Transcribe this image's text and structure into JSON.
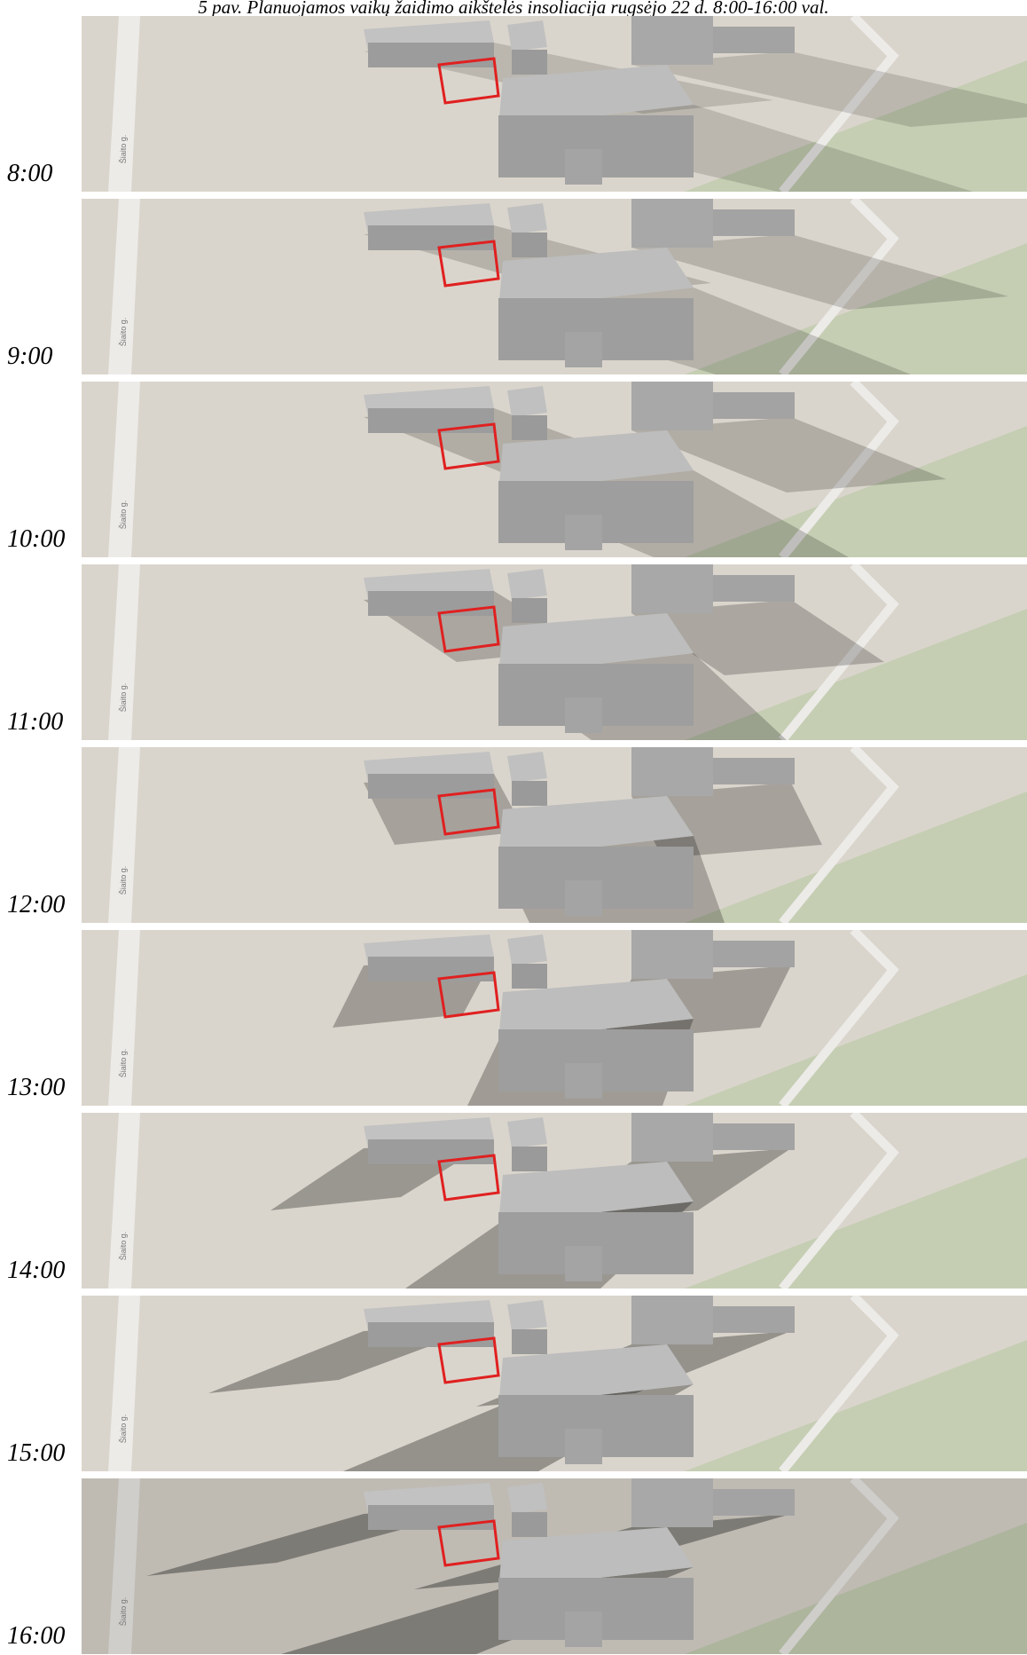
{
  "caption": "5 pav. Planuojamos vaikų žaidimo aikštelės insoliacija rugsėjo 22 d. 8:00-16:00 val.",
  "street_label": "Šiaito g.",
  "times": [
    "8:00",
    "9:00",
    "10:00",
    "11:00",
    "12:00",
    "13:00",
    "14:00",
    "15:00",
    "16:00"
  ]
}
